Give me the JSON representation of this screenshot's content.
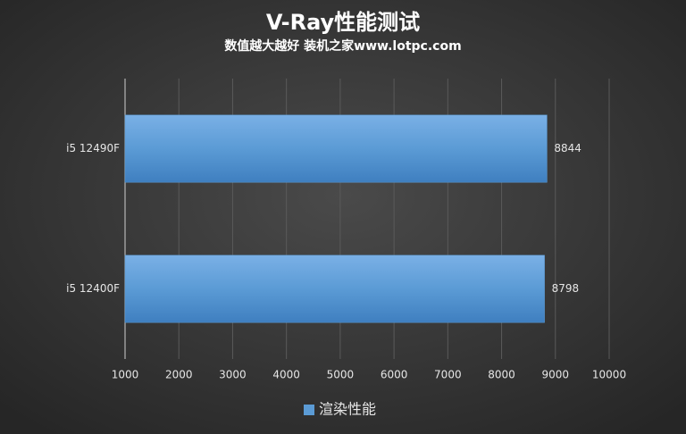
{
  "chart_data": {
    "type": "hbar",
    "title": "V-Ray性能测试",
    "subtitle": "数值越大越好 装机之家www.lotpc.com",
    "categories": [
      "i5 12490F",
      "i5 12400F"
    ],
    "series": [
      {
        "name": "渲染性能",
        "color": "#5b9bd5",
        "values": [
          8844,
          8798
        ]
      }
    ],
    "xlim": [
      1000,
      10000
    ],
    "xticks": [
      1000,
      2000,
      3000,
      4000,
      5000,
      6000,
      7000,
      8000,
      9000,
      10000
    ],
    "grid": true,
    "legend": "bottom"
  }
}
